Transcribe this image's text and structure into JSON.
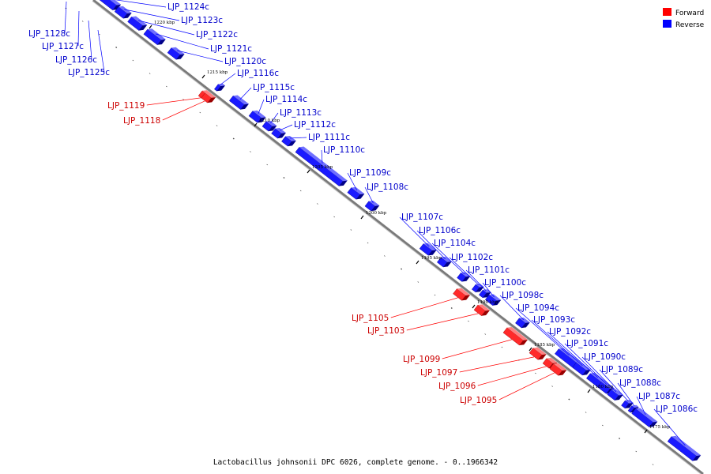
{
  "colors": {
    "forward": "#ff0000",
    "reverse": "#0000ff",
    "forward_label": "#cc0000",
    "reverse_label": "#0000cc",
    "backbone": "#888888"
  },
  "legend": [
    {
      "label": "Forward",
      "color": "#ff0000"
    },
    {
      "label": "Reverse",
      "color": "#0000ff"
    }
  ],
  "caption": "Lactobacillus johnsonii DPC 6026, complete genome. - 0..1966342",
  "kbp_marks": [
    "1220 kbp",
    "1215 kbp",
    "1210 kbp",
    "1205 kbp",
    "1200 kbp",
    "1195 kbp",
    "1190 kbp",
    "1185 kbp",
    "1180 kbp",
    "1175 kbp"
  ],
  "reverse_genes": [
    "LJP_1124c",
    "LJP_1123c",
    "LJP_1122c",
    "LJP_1121c",
    "LJP_1120c",
    "LJP_1116c",
    "LJP_1115c",
    "LJP_1114c",
    "LJP_1113c",
    "LJP_1112c",
    "LJP_1111c",
    "LJP_1110c",
    "LJP_1109c",
    "LJP_1108c",
    "LJP_1107c",
    "LJP_1106c",
    "LJP_1104c",
    "LJP_1102c",
    "LJP_1101c",
    "LJP_1100c",
    "LJP_1098c",
    "LJP_1094c",
    "LJP_1093c",
    "LJP_1092c",
    "LJP_1091c",
    "LJP_1090c",
    "LJP_1089c",
    "LJP_1088c",
    "LJP_1087c",
    "LJP_1086c"
  ],
  "reverse_genes_left": [
    "LJP_1128c",
    "LJP_1127c",
    "LJP_1126c",
    "LJP_1125c"
  ],
  "forward_genes": [
    "LJP_1119",
    "LJP_1118",
    "LJP_1105",
    "LJP_1103",
    "LJP_1099",
    "LJP_1097",
    "LJP_1096",
    "LJP_1095"
  ]
}
